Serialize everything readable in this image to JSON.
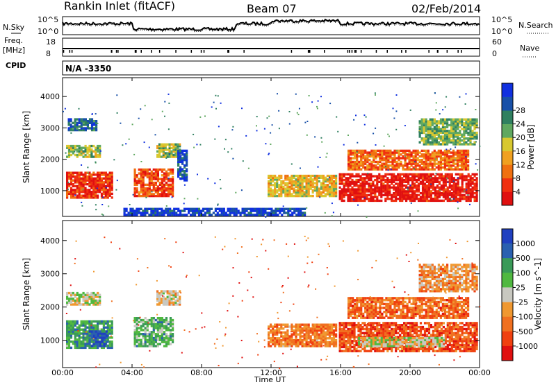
{
  "header": {
    "title": "Rankin Inlet (fitACF)",
    "beam": "Beam 07",
    "date": "02/Feb/2014"
  },
  "noise_panel": {
    "left_label": "N.Sky",
    "right_label": "N.Search",
    "left_ticks": [
      "10^5",
      "10^0"
    ],
    "right_ticks": [
      "10^5",
      "10^0"
    ]
  },
  "freq_panel": {
    "left_label": "Freq.",
    "left_unit": "[MHz]",
    "right_label": "Nave",
    "left_ticks": [
      "18",
      "8"
    ],
    "right_ticks": [
      "60",
      "0"
    ]
  },
  "cpid_panel": {
    "label": "CPID",
    "value": "N/A -3350"
  },
  "colors": {
    "power": [
      "#1030e0",
      "#1850a8",
      "#308060",
      "#60a860",
      "#d8c830",
      "#f0a020",
      "#f07010",
      "#f03010",
      "#e01010"
    ],
    "velocity": [
      "#e01010",
      "#f04010",
      "#f07020",
      "#f09830",
      "#c8c8c0",
      "#50b840",
      "#3a9a58",
      "#2a60b0",
      "#2040c0"
    ]
  },
  "chart_data": [
    {
      "type": "heatmap",
      "name": "power",
      "xlabel": "",
      "ylabel": "Slant Range [km]",
      "xlim": [
        0,
        24
      ],
      "ylim": [
        180,
        4600
      ],
      "yticks": [
        "1000",
        "2000",
        "3000",
        "4000"
      ],
      "colorbar": {
        "label": "Power [dB]",
        "range": [
          0,
          32
        ],
        "ticks": [
          "4",
          "8",
          "12",
          "16",
          "20",
          "24",
          "28"
        ]
      },
      "regions": [
        {
          "t0": 0.2,
          "t1": 2.9,
          "r0": 750,
          "r1": 1600,
          "level": 0.85
        },
        {
          "t0": 0.2,
          "t1": 2.2,
          "r0": 2050,
          "r1": 2450,
          "level": 0.45
        },
        {
          "t0": 0.3,
          "t1": 2.0,
          "r0": 2900,
          "r1": 3300,
          "level": 0.2
        },
        {
          "t0": 4.1,
          "t1": 6.4,
          "r0": 800,
          "r1": 1700,
          "level": 0.8
        },
        {
          "t0": 5.4,
          "t1": 6.8,
          "r0": 2050,
          "r1": 2500,
          "level": 0.45
        },
        {
          "t0": 6.6,
          "t1": 7.2,
          "r0": 1300,
          "r1": 2300,
          "level": 0.15
        },
        {
          "t0": 11.8,
          "t1": 15.8,
          "r0": 800,
          "r1": 1500,
          "level": 0.55
        },
        {
          "t0": 15.9,
          "t1": 23.9,
          "r0": 650,
          "r1": 1550,
          "level": 0.92
        },
        {
          "t0": 16.4,
          "t1": 23.4,
          "r0": 1650,
          "r1": 2300,
          "level": 0.75
        },
        {
          "t0": 20.5,
          "t1": 23.9,
          "r0": 2450,
          "r1": 3300,
          "level": 0.4
        },
        {
          "t0": 3.5,
          "t1": 14.0,
          "r0": 200,
          "r1": 450,
          "level": 0.1
        }
      ]
    },
    {
      "type": "heatmap",
      "name": "velocity",
      "xlabel": "Time UT",
      "ylabel": "Slant Range [km]",
      "xlim": [
        0,
        24
      ],
      "ylim": [
        180,
        4600
      ],
      "xticks": [
        "00:00",
        "04:00",
        "08:00",
        "12:00",
        "16:00",
        "20:00",
        "00:00"
      ],
      "yticks": [
        "1000",
        "2000",
        "3000",
        "4000"
      ],
      "colorbar": {
        "label": "Velocity [m s^-1]",
        "ticks": [
          "1000",
          "500",
          "100",
          "25",
          "-25",
          "-100",
          "-500",
          "-1000"
        ]
      },
      "regions": [
        {
          "t0": 0.2,
          "t1": 2.9,
          "r0": 750,
          "r1": 1600,
          "level": 0.7
        },
        {
          "t0": 1.5,
          "t1": 2.6,
          "r0": 800,
          "r1": 1300,
          "level": 0.9
        },
        {
          "t0": 0.2,
          "t1": 2.2,
          "r0": 2050,
          "r1": 2450,
          "level": 0.5
        },
        {
          "t0": 4.1,
          "t1": 6.4,
          "r0": 800,
          "r1": 1700,
          "level": 0.65
        },
        {
          "t0": 5.4,
          "t1": 6.8,
          "r0": 2050,
          "r1": 2500,
          "level": 0.45
        },
        {
          "t0": 11.8,
          "t1": 15.8,
          "r0": 800,
          "r1": 1500,
          "level": 0.3
        },
        {
          "t0": 15.9,
          "t1": 23.9,
          "r0": 650,
          "r1": 1550,
          "level": 0.2
        },
        {
          "t0": 17.0,
          "t1": 22.0,
          "r0": 800,
          "r1": 1100,
          "level": 0.5
        },
        {
          "t0": 16.4,
          "t1": 23.4,
          "r0": 1650,
          "r1": 2300,
          "level": 0.25
        },
        {
          "t0": 20.5,
          "t1": 23.9,
          "r0": 2450,
          "r1": 3300,
          "level": 0.35
        }
      ]
    }
  ]
}
